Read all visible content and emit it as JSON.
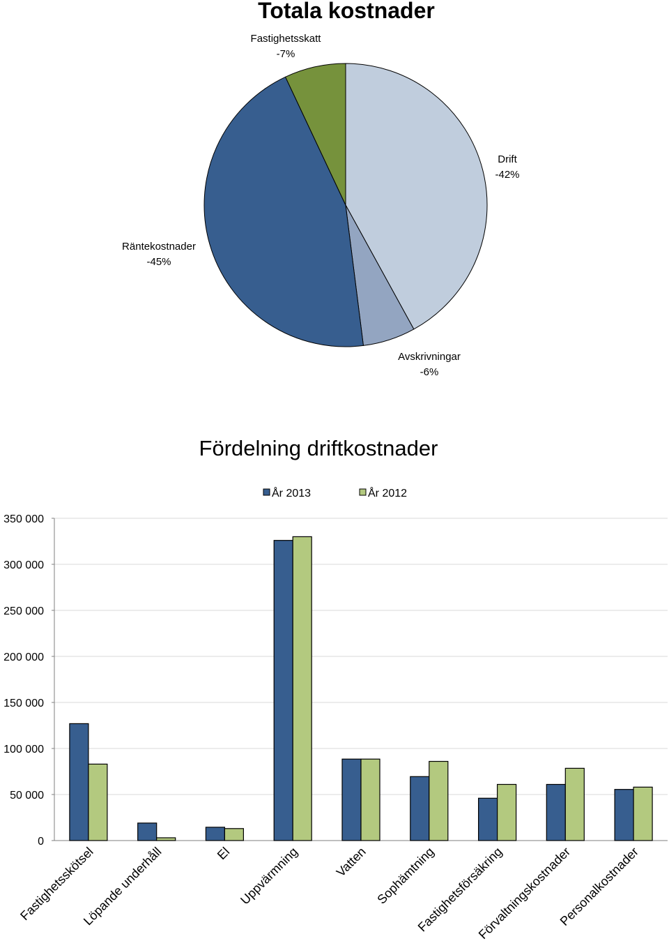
{
  "chart_data": [
    {
      "type": "pie",
      "title": "Totala kostnader",
      "slices": [
        {
          "label": "Drift",
          "value": 42,
          "display": "-42%",
          "color": "#c0cddd"
        },
        {
          "label": "Avskrivningar",
          "value": 6,
          "display": "-6%",
          "color": "#93a5c1"
        },
        {
          "label": "Räntekostnader",
          "value": 45,
          "display": "-45%",
          "color": "#375e8f"
        },
        {
          "label": "Fastighetsskatt",
          "value": 7,
          "display": "-7%",
          "color": "#76923c"
        }
      ]
    },
    {
      "type": "bar",
      "title": "Fördelning driftkostnader",
      "categories": [
        "Fastighetsskötsel",
        "Löpande underhåll",
        "El",
        "Uppvärmning",
        "Vatten",
        "Sophämtning",
        "Fastighetsförsäkring",
        "Förvaltningskostnader",
        "Personalkostnader"
      ],
      "series": [
        {
          "name": "År 2013",
          "color": "#375e8f",
          "values": [
            127000,
            19000,
            14500,
            326000,
            88500,
            69500,
            46000,
            61000,
            55500
          ]
        },
        {
          "name": "År 2012",
          "color": "#b3c97f",
          "values": [
            83000,
            3000,
            13000,
            330000,
            88500,
            86000,
            61000,
            78500,
            58000
          ]
        }
      ],
      "ylim": [
        0,
        350000
      ],
      "yticks": [
        0,
        50000,
        100000,
        150000,
        200000,
        250000,
        300000,
        350000
      ],
      "ytick_labels": [
        "0",
        "50 000",
        "100 000",
        "150 000",
        "200 000",
        "250 000",
        "300 000",
        "350 000"
      ],
      "grid": true,
      "legend": "top-center"
    }
  ]
}
